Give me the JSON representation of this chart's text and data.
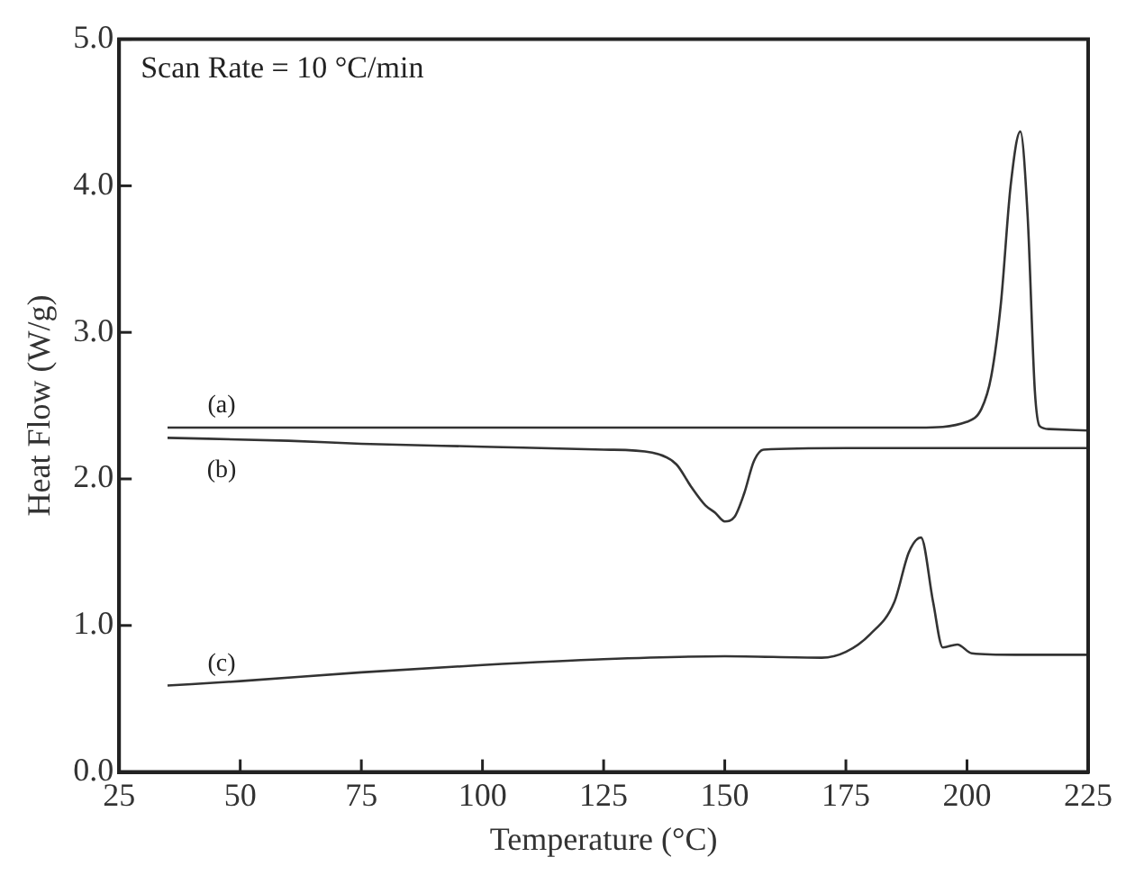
{
  "chart_data": {
    "type": "line",
    "xlabel": "Temperature (°C)",
    "ylabel": "Heat Flow (W/g)",
    "xlim": [
      25,
      225
    ],
    "xticks": [
      25,
      50,
      75,
      100,
      125,
      150,
      175,
      200,
      225
    ],
    "ylim": [
      0,
      5
    ],
    "yticks": [
      {
        "value": 0,
        "label": "0.0"
      },
      {
        "value": 1,
        "label": "1.0"
      },
      {
        "value": 2,
        "label": "2.0"
      },
      {
        "value": 3,
        "label": "3.0"
      },
      {
        "value": 4,
        "label": "4.0"
      },
      {
        "value": 5,
        "label": "5.0"
      }
    ],
    "grid": false,
    "legend": false,
    "marker": "none",
    "line_style": "solid",
    "annotations": [
      "Scan Rate = 10 °C/min"
    ],
    "series": [
      {
        "name": "(a)",
        "color": "#333333",
        "x": [
          35,
          60,
          100,
          150,
          190,
          200,
          203,
          205,
          207,
          209,
          211,
          212.5,
          214,
          215,
          217,
          225
        ],
        "values": [
          2.35,
          2.35,
          2.35,
          2.35,
          2.35,
          2.39,
          2.48,
          2.7,
          3.2,
          4.0,
          4.37,
          3.8,
          2.6,
          2.36,
          2.34,
          2.33
        ]
      },
      {
        "name": "(b)",
        "color": "#333333",
        "x": [
          35,
          60,
          75,
          100,
          125,
          135,
          140,
          143,
          146,
          148,
          150,
          152,
          154,
          156,
          158,
          175,
          200,
          225
        ],
        "values": [
          2.28,
          2.26,
          2.24,
          2.22,
          2.2,
          2.18,
          2.1,
          1.95,
          1.82,
          1.77,
          1.71,
          1.74,
          1.9,
          2.12,
          2.2,
          2.21,
          2.21,
          2.21
        ]
      },
      {
        "name": "(c)",
        "color": "#333333",
        "x": [
          35,
          50,
          75,
          100,
          125,
          150,
          170,
          175,
          180,
          185,
          188,
          190.5,
          193,
          195,
          198,
          201,
          210,
          225
        ],
        "values": [
          0.59,
          0.62,
          0.68,
          0.73,
          0.77,
          0.79,
          0.78,
          0.82,
          0.94,
          1.16,
          1.5,
          1.6,
          1.16,
          0.85,
          0.87,
          0.81,
          0.8,
          0.8
        ]
      }
    ]
  }
}
